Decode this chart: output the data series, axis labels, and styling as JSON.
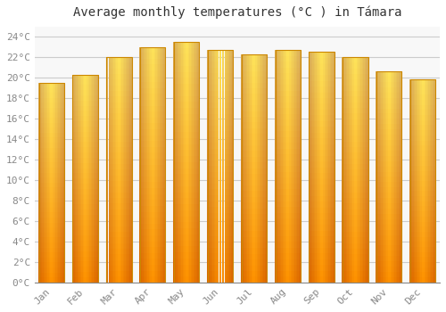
{
  "title": "Average monthly temperatures (°C ) in Támara",
  "months": [
    "Jan",
    "Feb",
    "Mar",
    "Apr",
    "May",
    "Jun",
    "Jul",
    "Aug",
    "Sep",
    "Oct",
    "Nov",
    "Dec"
  ],
  "values": [
    19.5,
    20.3,
    22.0,
    23.0,
    23.5,
    22.7,
    22.3,
    22.7,
    22.5,
    22.0,
    20.6,
    19.8
  ],
  "bar_color_top": "#FFE066",
  "bar_color_bottom": "#FFA500",
  "bar_edge_color": "#CC8800",
  "ylim": [
    0,
    25
  ],
  "yticks": [
    0,
    2,
    4,
    6,
    8,
    10,
    12,
    14,
    16,
    18,
    20,
    22,
    24
  ],
  "ytick_labels": [
    "0°C",
    "2°C",
    "4°C",
    "6°C",
    "8°C",
    "10°C",
    "12°C",
    "14°C",
    "16°C",
    "18°C",
    "20°C",
    "22°C",
    "24°C"
  ],
  "bg_color": "#FFFFFF",
  "plot_bg_color": "#F8F8F8",
  "grid_color": "#CCCCCC",
  "title_fontsize": 10,
  "tick_fontsize": 8,
  "tick_color": "#888888",
  "font_family": "monospace",
  "bar_width": 0.75
}
